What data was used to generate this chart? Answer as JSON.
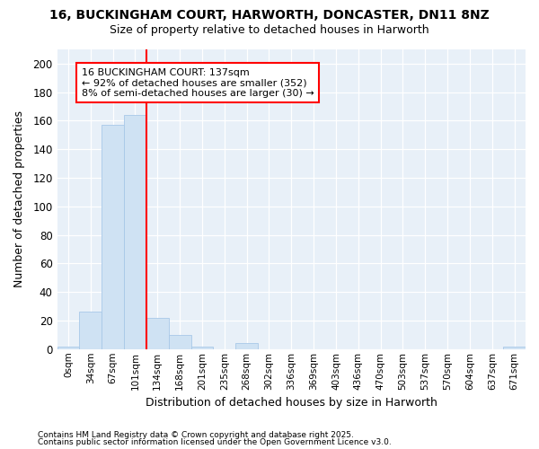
{
  "title1": "16, BUCKINGHAM COURT, HARWORTH, DONCASTER, DN11 8NZ",
  "title2": "Size of property relative to detached houses in Harworth",
  "xlabel": "Distribution of detached houses by size in Harworth",
  "ylabel": "Number of detached properties",
  "bar_color": "#cfe2f3",
  "bar_edge_color": "#a8c8e8",
  "bin_labels": [
    "0sqm",
    "34sqm",
    "67sqm",
    "101sqm",
    "134sqm",
    "168sqm",
    "201sqm",
    "235sqm",
    "268sqm",
    "302sqm",
    "336sqm",
    "369sqm",
    "403sqm",
    "436sqm",
    "470sqm",
    "503sqm",
    "537sqm",
    "570sqm",
    "604sqm",
    "637sqm",
    "671sqm"
  ],
  "bar_heights": [
    2,
    26,
    157,
    164,
    22,
    10,
    2,
    0,
    4,
    0,
    0,
    0,
    0,
    0,
    0,
    0,
    0,
    0,
    0,
    0,
    2
  ],
  "red_line_x": 4.0,
  "annotation_text": "16 BUCKINGHAM COURT: 137sqm\n← 92% of detached houses are smaller (352)\n8% of semi-detached houses are larger (30) →",
  "ylim": [
    0,
    210
  ],
  "yticks": [
    0,
    20,
    40,
    60,
    80,
    100,
    120,
    140,
    160,
    180,
    200
  ],
  "footer1": "Contains HM Land Registry data © Crown copyright and database right 2025.",
  "footer2": "Contains public sector information licensed under the Open Government Licence v3.0.",
  "background_color": "#ffffff",
  "plot_bg_color": "#e8f0f8"
}
